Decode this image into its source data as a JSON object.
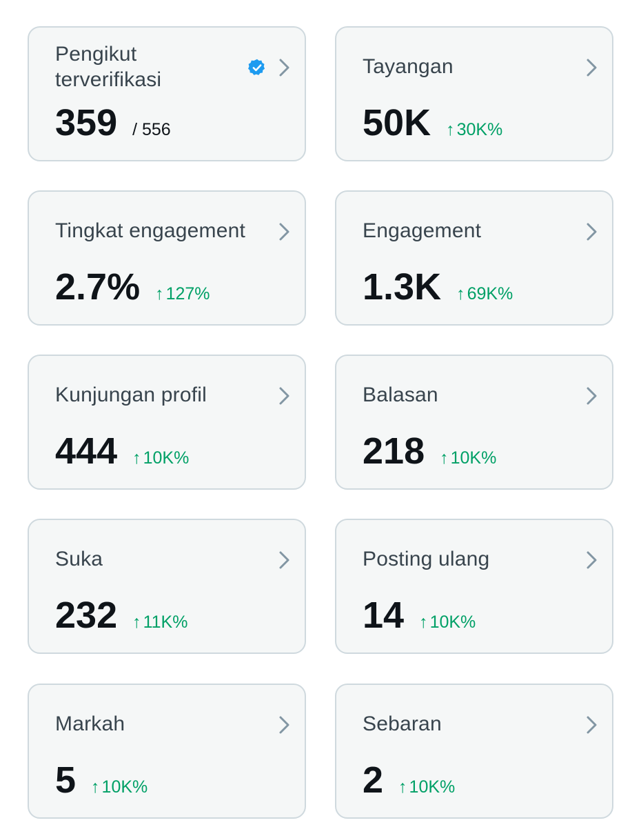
{
  "colors": {
    "card_background": "#f5f7f7",
    "card_border": "#cfd9de",
    "label": "#38444d",
    "value": "#0f1419",
    "positive_change": "#00a066",
    "chevron": "#8296a3",
    "verified_badge": "#1d9bf0"
  },
  "icons": {
    "chevron": "chevron-right-icon",
    "verified": "verified-badge-icon",
    "increase": "arrow-up-icon"
  },
  "cards": [
    {
      "label": "Pengikut terverifikasi",
      "value": "359",
      "total": "/ 556",
      "verified_badge": true
    },
    {
      "label": "Tayangan",
      "value": "50K",
      "change_arrow": "↑",
      "change": "30K%"
    },
    {
      "label": "Tingkat engagement",
      "value": "2.7%",
      "change_arrow": "↑",
      "change": "127%"
    },
    {
      "label": "Engagement",
      "value": "1.3K",
      "change_arrow": "↑",
      "change": "69K%"
    },
    {
      "label": "Kunjungan profil",
      "value": "444",
      "change_arrow": "↑",
      "change": "10K%"
    },
    {
      "label": "Balasan",
      "value": "218",
      "change_arrow": "↑",
      "change": "10K%"
    },
    {
      "label": "Suka",
      "value": "232",
      "change_arrow": "↑",
      "change": "11K%"
    },
    {
      "label": "Posting ulang",
      "value": "14",
      "change_arrow": "↑",
      "change": "10K%"
    },
    {
      "label": "Markah",
      "value": "5",
      "change_arrow": "↑",
      "change": "10K%"
    },
    {
      "label": "Sebaran",
      "value": "2",
      "change_arrow": "↑",
      "change": "10K%"
    }
  ]
}
